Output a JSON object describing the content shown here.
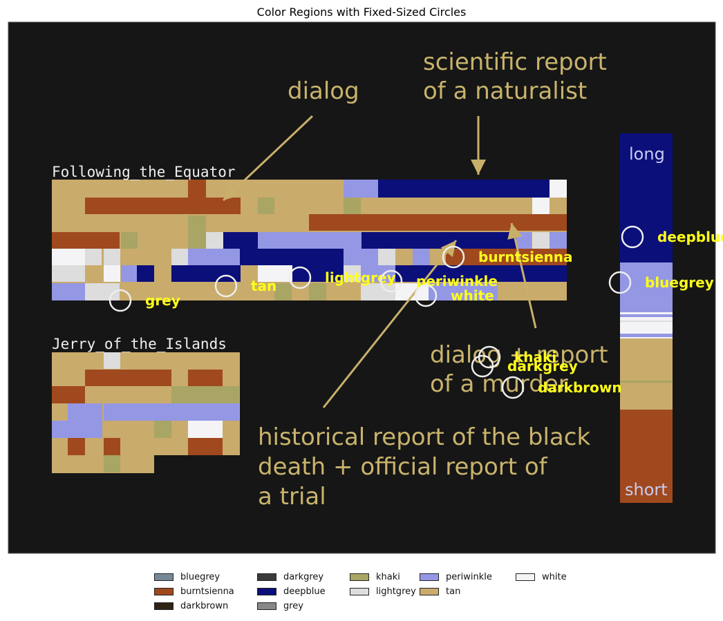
{
  "chart_data": {
    "type": "heatmap",
    "title": "Color Regions with Fixed-Sized Circles",
    "image_texts": [
      {
        "id": "equator-label",
        "lines": [
          "Following_the_Equator"
        ]
      },
      {
        "id": "jerry-label",
        "lines": [
          "Jerry_of_the_Islands"
        ]
      },
      {
        "id": "dialog-annot",
        "lines": [
          "dialog"
        ]
      },
      {
        "id": "scientific-annot",
        "lines": [
          "scientific report",
          "of a naturalist"
        ]
      },
      {
        "id": "murder-annot",
        "lines": [
          "dialog + report",
          "of a murder"
        ]
      },
      {
        "id": "history-annot",
        "lines": [
          "historical report of the black",
          "death + official report of",
          "a trial"
        ]
      },
      {
        "id": "long-label",
        "lines": [
          "long"
        ]
      },
      {
        "id": "short-label",
        "lines": [
          "short"
        ]
      }
    ],
    "circles": [
      {
        "label": "deepblue"
      },
      {
        "label": "burntsienna"
      },
      {
        "label": "bluegrey"
      },
      {
        "label": "tan"
      },
      {
        "label": "lightgrey"
      },
      {
        "label": "periwinkle"
      },
      {
        "label": "white"
      },
      {
        "label": "grey"
      },
      {
        "label": "khaki"
      },
      {
        "label": "darkgrey"
      },
      {
        "label": "darkbrown"
      }
    ],
    "legend": {
      "placement": "bottom-center",
      "columns": 5,
      "entries": [
        {
          "label": "bluegrey",
          "color": "#778899"
        },
        {
          "label": "burntsienna",
          "color": "#a0491f"
        },
        {
          "label": "darkbrown",
          "color": "#2e2416"
        },
        {
          "label": "darkgrey",
          "color": "#3a3a3a"
        },
        {
          "label": "deepblue",
          "color": "#0b0f7a"
        },
        {
          "label": "grey",
          "color": "#888888"
        },
        {
          "label": "khaki",
          "color": "#a8a565"
        },
        {
          "label": "lightgrey",
          "color": "#dddddd"
        },
        {
          "label": "periwinkle",
          "color": "#9497e4"
        },
        {
          "label": "tan",
          "color": "#c9ab6c"
        },
        {
          "label": "white",
          "color": "#f4f4f6"
        }
      ]
    },
    "colors": {
      "background": "#161616",
      "circle_stroke": "#eeeeee",
      "circle_label": "#ffff1a",
      "annotation_text": "#c9b46c",
      "arrow": "#c9b06a",
      "block_label": "#f0f0f0",
      "long_short_label": "#c8ccf0"
    }
  }
}
